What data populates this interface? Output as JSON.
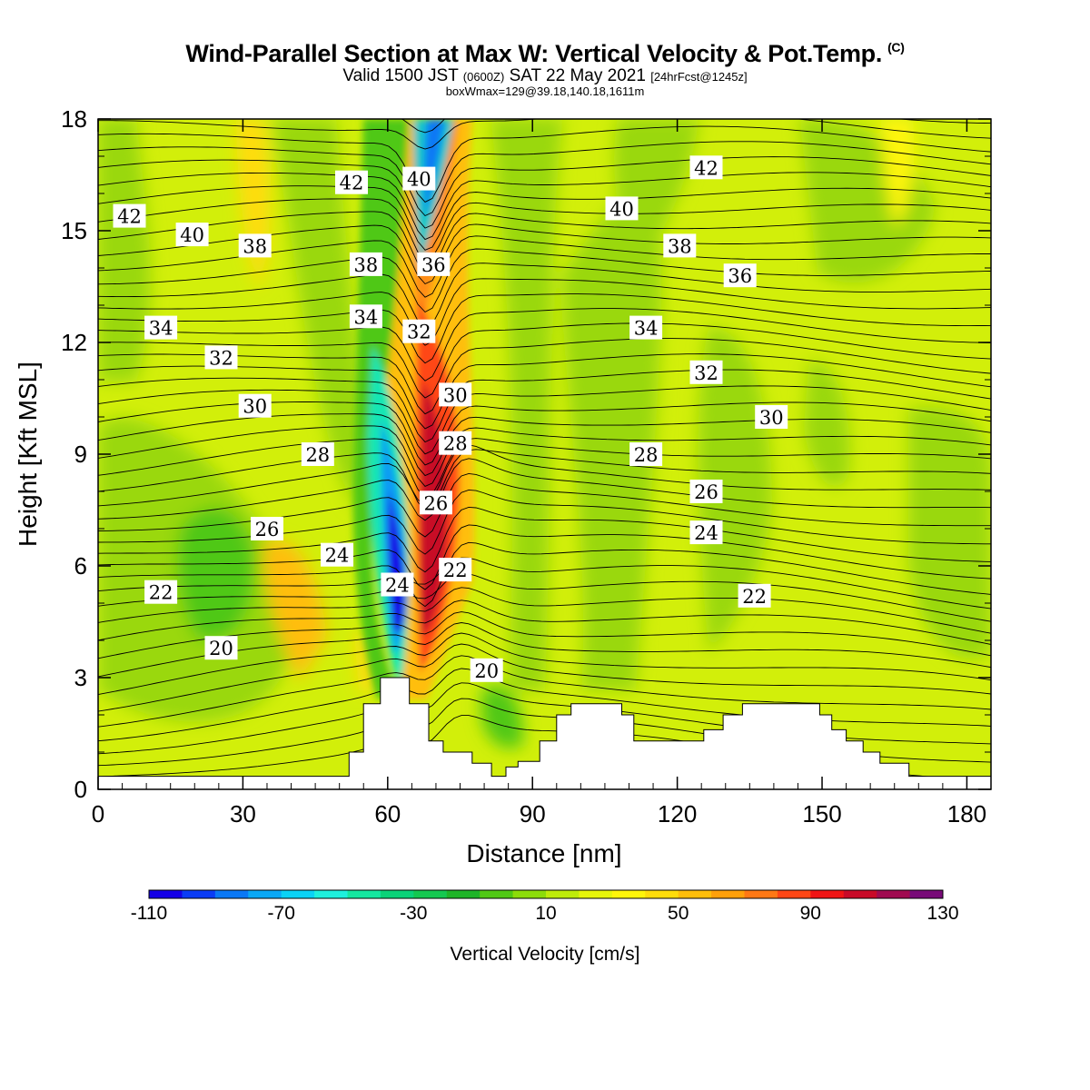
{
  "header": {
    "title": "Wind-Parallel Section at Max W: Vertical Velocity & Pot.Temp.",
    "title_mark": "(C)",
    "valid_main": "Valid 1500 JST",
    "valid_utc": "(0600Z)",
    "valid_date": "SAT 22 May 2021",
    "valid_fcst": "[24hrFcst@1245z]",
    "boxwmax": "boxWmax=129@39.18,140.18,1611m"
  },
  "chart_data": {
    "type": "heatmap",
    "title": "Wind-Parallel Section at Max W: Vertical Velocity & Pot.Temp.",
    "xlabel": "Distance [nm]",
    "ylabel": "Height [Kft MSL]",
    "xlim": [
      0,
      185
    ],
    "ylim": [
      0,
      18
    ],
    "x_ticks": [
      "0",
      "30",
      "60",
      "90",
      "120",
      "150",
      "180"
    ],
    "x_tick_values": [
      0,
      30,
      60,
      90,
      120,
      150,
      180
    ],
    "y_ticks": [
      "0",
      "3",
      "6",
      "9",
      "12",
      "15",
      "18"
    ],
    "y_tick_values": [
      0,
      3,
      6,
      9,
      12,
      15,
      18
    ],
    "colorbar": {
      "title": "Vertical Velocity [cm/s]",
      "labels": [
        "-110",
        "-70",
        "-30",
        "10",
        "50",
        "90",
        "130"
      ],
      "label_values": [
        -110,
        -70,
        -30,
        10,
        50,
        90,
        130
      ],
      "min": -110,
      "max": 130,
      "step": 10,
      "colors": [
        "#1400e6",
        "#0a3cf5",
        "#0a78f5",
        "#0aa8f5",
        "#0ad2f5",
        "#1ef0dc",
        "#14e6a0",
        "#0ad278",
        "#14c850",
        "#1eb428",
        "#50c814",
        "#8cdc0a",
        "#beeb0a",
        "#e6f50a",
        "#fff50a",
        "#ffdc0a",
        "#ffbe0a",
        "#ffa00a",
        "#ff7814",
        "#ff4614",
        "#f01414",
        "#c80a28",
        "#a00a50",
        "#780a78"
      ]
    },
    "contour_labels": [
      {
        "text": "42",
        "x": 6.5,
        "y": 15.4
      },
      {
        "text": "40",
        "x": 19.5,
        "y": 14.9
      },
      {
        "text": "38",
        "x": 32.5,
        "y": 14.6
      },
      {
        "text": "42",
        "x": 52.5,
        "y": 16.3
      },
      {
        "text": "40",
        "x": 66.5,
        "y": 16.4
      },
      {
        "text": "38",
        "x": 55.5,
        "y": 14.1
      },
      {
        "text": "36",
        "x": 69.5,
        "y": 14.1
      },
      {
        "text": "34",
        "x": 55.5,
        "y": 12.7
      },
      {
        "text": "32",
        "x": 66.5,
        "y": 12.3
      },
      {
        "text": "34",
        "x": 13,
        "y": 12.4
      },
      {
        "text": "32",
        "x": 25.5,
        "y": 11.6
      },
      {
        "text": "30",
        "x": 32.5,
        "y": 10.3
      },
      {
        "text": "28",
        "x": 45.5,
        "y": 9
      },
      {
        "text": "26",
        "x": 35,
        "y": 7
      },
      {
        "text": "24",
        "x": 49.5,
        "y": 6.3
      },
      {
        "text": "22",
        "x": 13,
        "y": 5.3
      },
      {
        "text": "20",
        "x": 25.5,
        "y": 3.8
      },
      {
        "text": "30",
        "x": 74,
        "y": 10.6
      },
      {
        "text": "28",
        "x": 74,
        "y": 9.3
      },
      {
        "text": "26",
        "x": 70,
        "y": 7.7
      },
      {
        "text": "22",
        "x": 74,
        "y": 5.9
      },
      {
        "text": "24",
        "x": 62,
        "y": 5.5
      },
      {
        "text": "20",
        "x": 80.5,
        "y": 3.2
      },
      {
        "text": "42",
        "x": 126,
        "y": 16.7
      },
      {
        "text": "40",
        "x": 108.5,
        "y": 15.6
      },
      {
        "text": "38",
        "x": 120.5,
        "y": 14.6
      },
      {
        "text": "36",
        "x": 133,
        "y": 13.8
      },
      {
        "text": "34",
        "x": 113.5,
        "y": 12.4
      },
      {
        "text": "32",
        "x": 126,
        "y": 11.2
      },
      {
        "text": "30",
        "x": 139.5,
        "y": 10
      },
      {
        "text": "28",
        "x": 113.5,
        "y": 9
      },
      {
        "text": "26",
        "x": 126,
        "y": 8
      },
      {
        "text": "24",
        "x": 126,
        "y": 6.9
      },
      {
        "text": "22",
        "x": 136,
        "y": 5.2
      }
    ],
    "terrain_profile": [
      [
        0,
        0.35
      ],
      [
        52,
        0.35
      ],
      [
        52,
        1
      ],
      [
        55,
        1
      ],
      [
        55,
        2.3
      ],
      [
        58.5,
        2.3
      ],
      [
        58.5,
        3
      ],
      [
        64.5,
        3
      ],
      [
        64.5,
        2.3
      ],
      [
        68.5,
        2.3
      ],
      [
        68.5,
        1.3
      ],
      [
        71.5,
        1.3
      ],
      [
        71.5,
        1
      ],
      [
        77.5,
        1
      ],
      [
        77.5,
        0.7
      ],
      [
        81.5,
        0.7
      ],
      [
        81.5,
        0.35
      ],
      [
        84.5,
        0.35
      ],
      [
        84.5,
        0.6
      ],
      [
        87,
        0.6
      ],
      [
        87,
        0.75
      ],
      [
        91.5,
        0.75
      ],
      [
        91.5,
        1.3
      ],
      [
        95,
        1.3
      ],
      [
        95,
        2
      ],
      [
        98,
        2
      ],
      [
        98,
        2.3
      ],
      [
        108.5,
        2.3
      ],
      [
        108.5,
        2
      ],
      [
        111,
        2
      ],
      [
        111,
        1.3
      ],
      [
        125.5,
        1.3
      ],
      [
        125.5,
        1.6
      ],
      [
        129.5,
        1.6
      ],
      [
        129.5,
        2
      ],
      [
        133.5,
        2
      ],
      [
        133.5,
        2.3
      ],
      [
        149.5,
        2.3
      ],
      [
        149.5,
        2
      ],
      [
        152,
        2
      ],
      [
        152,
        1.6
      ],
      [
        155,
        1.6
      ],
      [
        155,
        1.3
      ],
      [
        158.5,
        1.3
      ],
      [
        158.5,
        1
      ],
      [
        162,
        1
      ],
      [
        162,
        0.7
      ],
      [
        168,
        0.7
      ],
      [
        168,
        0.35
      ],
      [
        185,
        0.35
      ]
    ]
  }
}
